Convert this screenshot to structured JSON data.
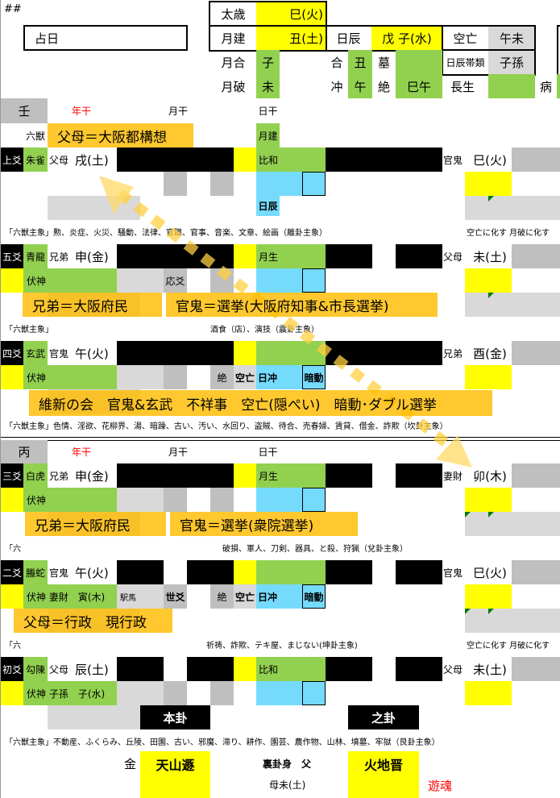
{
  "corner_mark": "##",
  "date_label": "占日",
  "header": {
    "taisai_label": "太歳",
    "taisai_value": "巳(火)",
    "gekken_label": "月建",
    "gekken_value": "丑(土)",
    "nisshin_label": "日辰",
    "nisshin_value": "戊 子(水)",
    "kuubou_label": "空亡",
    "kuubou_value": "午未",
    "nisshin_type_label": "日辰帯類",
    "nisshin_type_value": "子孫",
    "getsugou_label": "月合",
    "getsugou_value": "子",
    "getsuha_label": "月破",
    "getsuha_value": "未",
    "gou_label": "合",
    "gou_value": "丑",
    "bo_label": "墓",
    "chuu_label": "冲",
    "chuu_value": "午",
    "zetsu_label": "絶",
    "zetsu_value": "巳午",
    "chousei_label": "長生",
    "byou_label": "病"
  },
  "stems_upper": {
    "stem": "壬",
    "year": "年干",
    "month": "月干",
    "day": "日干"
  },
  "stems_lower": {
    "stem": "丙",
    "year": "年干",
    "month": "月干",
    "day": "日干"
  },
  "six_beast_header": "六獣",
  "month_build_tag": "月建",
  "yao": [
    {
      "label": "上爻",
      "beast": "朱雀",
      "relative": "父母",
      "branch": "戌(土)",
      "month_rel": "比和",
      "line_main": "yang",
      "line_changed": "yang",
      "changed_relative": "官鬼",
      "changed_branch": "巳(火)",
      "hidden": "",
      "tag2": "",
      "zetsu": "",
      "kuubou": "",
      "day_clash": "",
      "hidden_move": "",
      "day_tag": "日辰",
      "note": "「六獣主象」勲、炎症、火災、騒動、法律、官職、官事、音楽、文章、絵画（離卦主象）",
      "note_right": "空亡に化す 月破に化す",
      "marks": 1
    },
    {
      "label": "五爻",
      "beast": "青龍",
      "relative": "兄弟",
      "branch": "申(金)",
      "month_rel": "月生",
      "line_main": "yang",
      "line_changed": "yin",
      "changed_relative": "父母",
      "changed_branch": "未(土)",
      "hidden": "伏神",
      "tag2": "応爻",
      "zetsu": "",
      "kuubou": "",
      "day_clash": "",
      "hidden_move": "",
      "day_tag": "",
      "note": "「六獣主象」　　　　　　　　　　　　　　　　　　　　酒食（店）、演技（震卦主象）",
      "note_right": "",
      "marks": 1
    },
    {
      "label": "四爻",
      "beast": "玄武",
      "relative": "官鬼",
      "branch": "午(火)",
      "month_rel": "",
      "line_main": "yang",
      "line_changed": "yang",
      "changed_relative": "兄弟",
      "changed_branch": "酉(金)",
      "hidden": "伏神",
      "tag2": "",
      "zetsu": "絶",
      "kuubou": "空亡",
      "day_clash": "日冲",
      "hidden_move": "暗動",
      "day_tag": "",
      "note": "「六獣主象」色情、淫欲、花柳界、湯、暗躁、古い、汚い、水回り、盗賊、待合、売春婦、賃貸、借金、詐欺（坎卦主象）",
      "note_right": "",
      "marks": 0
    },
    {
      "label": "三爻",
      "beast": "白虎",
      "relative": "兄弟",
      "branch": "申(金)",
      "month_rel": "月生",
      "line_main": "yang",
      "line_changed": "yin",
      "changed_relative": "妻財",
      "changed_branch": "卯(木)",
      "hidden": "伏神",
      "tag2": "",
      "zetsu": "",
      "kuubou": "",
      "day_clash": "",
      "hidden_move": "",
      "day_tag": "",
      "note": "「六　　　　　　　　　　　　　　　　　　　　　　　　　破損、軍人、刀剣、器具、と殺、狩猟（兌卦主象）",
      "note_right": "",
      "marks": 2
    },
    {
      "label": "二爻",
      "beast": "螣蛇",
      "relative": "官鬼",
      "branch": "午(火)",
      "month_rel": "",
      "line_main": "yin",
      "line_changed": "yin",
      "changed_relative": "官鬼",
      "changed_branch": "巳(火)",
      "hidden": "伏神 妻財　寅(木)",
      "tag1": "駅馬",
      "tag2": "世爻",
      "zetsu": "絶",
      "kuubou": "空亡",
      "day_clash": "日冲",
      "hidden_move": "暗動",
      "day_tag": "",
      "note": "「六　　　　　　　　　　　　　　　　　　　　　　　祈祷、詐欺、テキ屋、まじない(坤卦主象)",
      "note_right": "空亡に化す 月破に化す",
      "marks": 2
    },
    {
      "label": "初爻",
      "beast": "勾陳",
      "relative": "父母",
      "branch": "辰(土)",
      "month_rel": "比和",
      "line_main": "yin",
      "line_changed": "yin",
      "changed_relative": "父母",
      "changed_branch": "未(土)",
      "hidden": "伏神 子孫　子(水)",
      "tag2": "",
      "zetsu": "",
      "kuubou": "",
      "day_clash": "",
      "hidden_move": "",
      "day_tag": "",
      "note": "「六獣主象」不動産、ふくらみ、丘陵、田園、古い、邪魔、滞り、耕作、園芸、農作物、山林、墳墓、牢獄（艮卦主象）",
      "note_right": "",
      "marks": 0
    }
  ],
  "hexagrams": {
    "main_label": "本卦",
    "changed_label": "之卦",
    "main_element": "金",
    "main_name": "天山遯",
    "hidden_body_1": "裏卦身　父",
    "hidden_body_2": "母未(土)",
    "changed_name": "火地晋",
    "changed_type": "遊魂"
  },
  "callouts": [
    "父母＝大阪都構想",
    "兄弟＝大阪府民",
    "官鬼＝選挙(大阪府知事&市長選挙)",
    "維新の会　官鬼&玄武　不祥事　空亡(隠ぺい)　暗動･ダブル選挙",
    "兄弟＝大阪府民",
    "官鬼＝選挙(衆院選挙)",
    "父母＝行政　現行政"
  ],
  "colors": {
    "black": "#000000",
    "green": "#92d050",
    "yellow": "#ffff00",
    "blue": "#75dbfd",
    "grey": "#bfbfbf",
    "light_grey": "#d9d9d9",
    "callout": "#ffbc00",
    "arrow": "#ffd966",
    "red": "#ff0000"
  }
}
